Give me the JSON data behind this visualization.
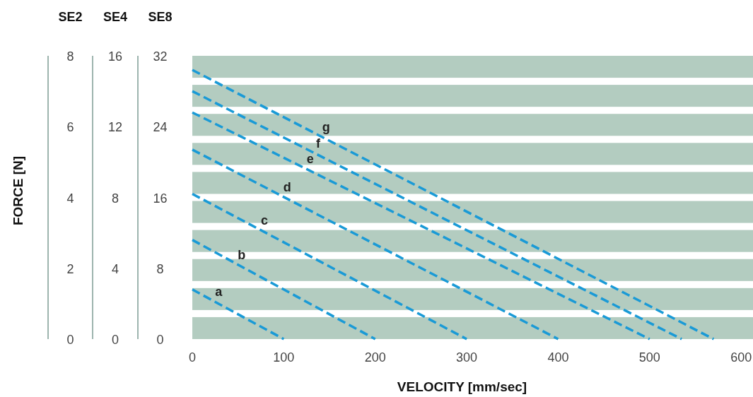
{
  "chart_data": {
    "type": "line",
    "xlabel": "VELOCITY [mm/sec]",
    "ylabel": "SE2",
    "y2label": "SE4",
    "y3label": "SE8",
    "xlim": [
      0,
      613
    ],
    "xticks": [
      0,
      100,
      200,
      300,
      400,
      500,
      600
    ],
    "ylim": [
      0,
      8
    ],
    "yticks": [
      0,
      2,
      4,
      6,
      8
    ],
    "y2lim": [
      0,
      16
    ],
    "y2ticks": [
      0,
      4,
      8,
      12,
      16
    ],
    "y3lim": [
      0,
      32
    ],
    "y3ticks": [
      0,
      8,
      16,
      24,
      32
    ],
    "line_style": "dashed",
    "series": [
      {
        "name": "a",
        "color": "#1a9ad6",
        "x": [
          0,
          100
        ],
        "values": [
          1.4,
          0
        ]
      },
      {
        "name": "b",
        "color": "#1a9ad6",
        "x": [
          0,
          200
        ],
        "values": [
          2.8,
          0
        ]
      },
      {
        "name": "c",
        "color": "#1a9ad6",
        "x": [
          0,
          300
        ],
        "values": [
          4.1,
          0
        ]
      },
      {
        "name": "d",
        "color": "#1a9ad6",
        "x": [
          0,
          400
        ],
        "values": [
          5.35,
          0
        ]
      },
      {
        "name": "e",
        "color": "#1a9ad6",
        "x": [
          0,
          500
        ],
        "values": [
          6.4,
          0
        ]
      },
      {
        "name": "f",
        "color": "#1a9ad6",
        "x": [
          0,
          535
        ],
        "values": [
          7.0,
          0
        ]
      },
      {
        "name": "g",
        "color": "#1a9ad6",
        "x": [
          0,
          570
        ],
        "values": [
          7.6,
          0
        ]
      }
    ],
    "bands": [
      {
        "axis": "y",
        "from": 0,
        "to": 0.62,
        "color": "#b3ccc0"
      },
      {
        "axis": "y",
        "from": 0.82,
        "to": 1.44,
        "color": "#b3ccc0"
      },
      {
        "axis": "y",
        "from": 1.64,
        "to": 2.26,
        "color": "#b3ccc0"
      },
      {
        "axis": "y",
        "from": 2.46,
        "to": 3.08,
        "color": "#b3ccc0"
      },
      {
        "axis": "y",
        "from": 3.28,
        "to": 3.9,
        "color": "#b3ccc0"
      },
      {
        "axis": "y",
        "from": 4.1,
        "to": 4.72,
        "color": "#b3ccc0"
      },
      {
        "axis": "y",
        "from": 4.92,
        "to": 5.54,
        "color": "#b3ccc0"
      },
      {
        "axis": "y",
        "from": 5.74,
        "to": 6.36,
        "color": "#b3ccc0"
      },
      {
        "axis": "y",
        "from": 6.56,
        "to": 7.18,
        "color": "#b3ccc0"
      },
      {
        "axis": "y",
        "from": 7.38,
        "to": 8.0,
        "color": "#b3ccc0"
      }
    ],
    "annotations": [
      "FORCE [N]"
    ]
  }
}
